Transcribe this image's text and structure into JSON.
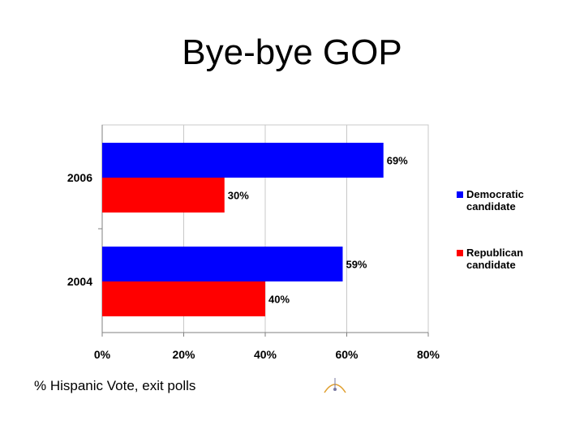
{
  "slide": {
    "title": "Bye-bye GOP",
    "caption": "% Hispanic Vote, exit polls"
  },
  "chart_data": {
    "type": "bar",
    "orientation": "horizontal",
    "categories": [
      "2006",
      "2004"
    ],
    "series": [
      {
        "name": "Democratic candidate",
        "legend_lines": [
          "Democratic",
          "candidate"
        ],
        "color": "#0000ff",
        "values": [
          69,
          59
        ],
        "labels": [
          "69%",
          "59%"
        ]
      },
      {
        "name": "Republican candidate",
        "legend_lines": [
          "Republican",
          "candidate"
        ],
        "color": "#ff0000",
        "values": [
          30,
          40
        ],
        "labels": [
          "30%",
          "40%"
        ]
      }
    ],
    "xlim": [
      0,
      80
    ],
    "x_ticks": [
      0,
      20,
      40,
      60,
      80
    ],
    "x_tick_labels": [
      "0%",
      "20%",
      "40%",
      "60%",
      "80%"
    ],
    "grid": true,
    "legend_position": "right"
  },
  "logo": {
    "icon": "small-emblem-icon",
    "color": "#e0a030"
  }
}
